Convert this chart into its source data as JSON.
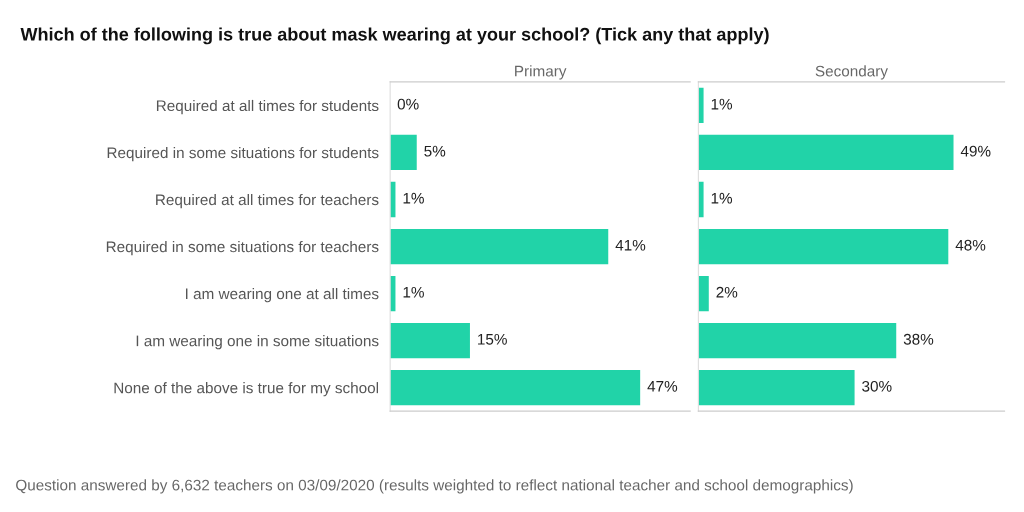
{
  "chart_data": [
    {
      "type": "bar",
      "orientation": "horizontal",
      "title": "Primary",
      "tick_labels": "y",
      "grid": false,
      "legend": false,
      "annotations": [
        "Which of the following is true about mask wearing at your school? (Tick any that apply)",
        "Question answered by 6,632 teachers on 03/09/2020 (results weighted to reflect national teacher and school demographics)"
      ],
      "categories": [
        "Required at all times for students",
        "Required in some situations for students",
        "Required at all times for teachers",
        "Required in some situations for teachers",
        "I am wearing one at all times",
        "I am wearing one in some situations",
        "None of the above is true for my school"
      ],
      "series": [
        {
          "color": "#21d3a8",
          "values": [
            0,
            5,
            1,
            41,
            1,
            15,
            47
          ],
          "value_labels": [
            "0%",
            "5%",
            "1%",
            "41%",
            "1%",
            "15%",
            "47%"
          ]
        }
      ]
    },
    {
      "type": "bar",
      "orientation": "horizontal",
      "title": "Secondary",
      "tick_labels": false,
      "grid": false,
      "legend": false,
      "categories": [
        null,
        null,
        null,
        null,
        null,
        null,
        null
      ],
      "series": [
        {
          "color": "#21d3a8",
          "values": [
            1,
            49,
            1,
            48,
            2,
            38,
            30
          ],
          "value_labels": [
            "1%",
            "49%",
            "1%",
            "48%",
            "2%",
            "38%",
            "30%"
          ]
        }
      ]
    }
  ]
}
